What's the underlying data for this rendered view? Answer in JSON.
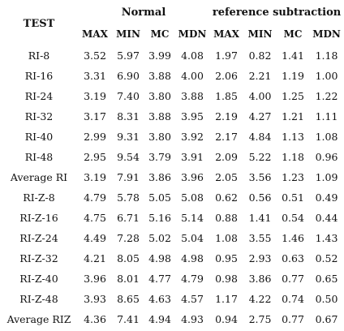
{
  "table": {
    "test_header": "TEST",
    "group_headers": [
      "Normal",
      "reference subtraction"
    ],
    "sub_headers": [
      "MAX",
      "MIN",
      "MC",
      "MDN",
      "MAX",
      "MIN",
      "MC",
      "MDN"
    ],
    "rows": [
      {
        "name": "RI-8",
        "values": [
          "3.52",
          "5.97",
          "3.99",
          "4.08",
          "1.97",
          "0.82",
          "1.41",
          "1.18"
        ]
      },
      {
        "name": "RI-16",
        "values": [
          "3.31",
          "6.90",
          "3.88",
          "4.00",
          "2.06",
          "2.21",
          "1.19",
          "1.00"
        ]
      },
      {
        "name": "RI-24",
        "values": [
          "3.19",
          "7.40",
          "3.80",
          "3.88",
          "1.85",
          "4.00",
          "1.25",
          "1.22"
        ]
      },
      {
        "name": "RI-32",
        "values": [
          "3.17",
          "8.31",
          "3.88",
          "3.95",
          "2.19",
          "4.27",
          "1.21",
          "1.11"
        ]
      },
      {
        "name": "RI-40",
        "values": [
          "2.99",
          "9.31",
          "3.80",
          "3.92",
          "2.17",
          "4.84",
          "1.13",
          "1.08"
        ]
      },
      {
        "name": "RI-48",
        "values": [
          "2.95",
          "9.54",
          "3.79",
          "3.91",
          "2.09",
          "5.22",
          "1.18",
          "0.96"
        ]
      },
      {
        "name": "Average RI",
        "values": [
          "3.19",
          "7.91",
          "3.86",
          "3.96",
          "2.05",
          "3.56",
          "1.23",
          "1.09"
        ]
      },
      {
        "name": "RI-Z-8",
        "values": [
          "4.79",
          "5.78",
          "5.05",
          "5.08",
          "0.62",
          "0.56",
          "0.51",
          "0.49"
        ]
      },
      {
        "name": "RI-Z-16",
        "values": [
          "4.75",
          "6.71",
          "5.16",
          "5.14",
          "0.88",
          "1.41",
          "0.54",
          "0.44"
        ]
      },
      {
        "name": "RI-Z-24",
        "values": [
          "4.49",
          "7.28",
          "5.02",
          "5.04",
          "1.08",
          "3.55",
          "1.46",
          "1.43"
        ]
      },
      {
        "name": "RI-Z-32",
        "values": [
          "4.21",
          "8.05",
          "4.98",
          "4.98",
          "0.95",
          "2.93",
          "0.63",
          "0.52"
        ]
      },
      {
        "name": "RI-Z-40",
        "values": [
          "3.96",
          "8.01",
          "4.77",
          "4.79",
          "0.98",
          "3.86",
          "0.77",
          "0.65"
        ]
      },
      {
        "name": "RI-Z-48",
        "values": [
          "3.93",
          "8.65",
          "4.63",
          "4.57",
          "1.17",
          "4.22",
          "0.74",
          "0.50"
        ]
      },
      {
        "name": "Average RIZ",
        "values": [
          "4.36",
          "7.41",
          "4.94",
          "4.93",
          "0.94",
          "2.75",
          "0.77",
          "0.67"
        ]
      }
    ]
  }
}
